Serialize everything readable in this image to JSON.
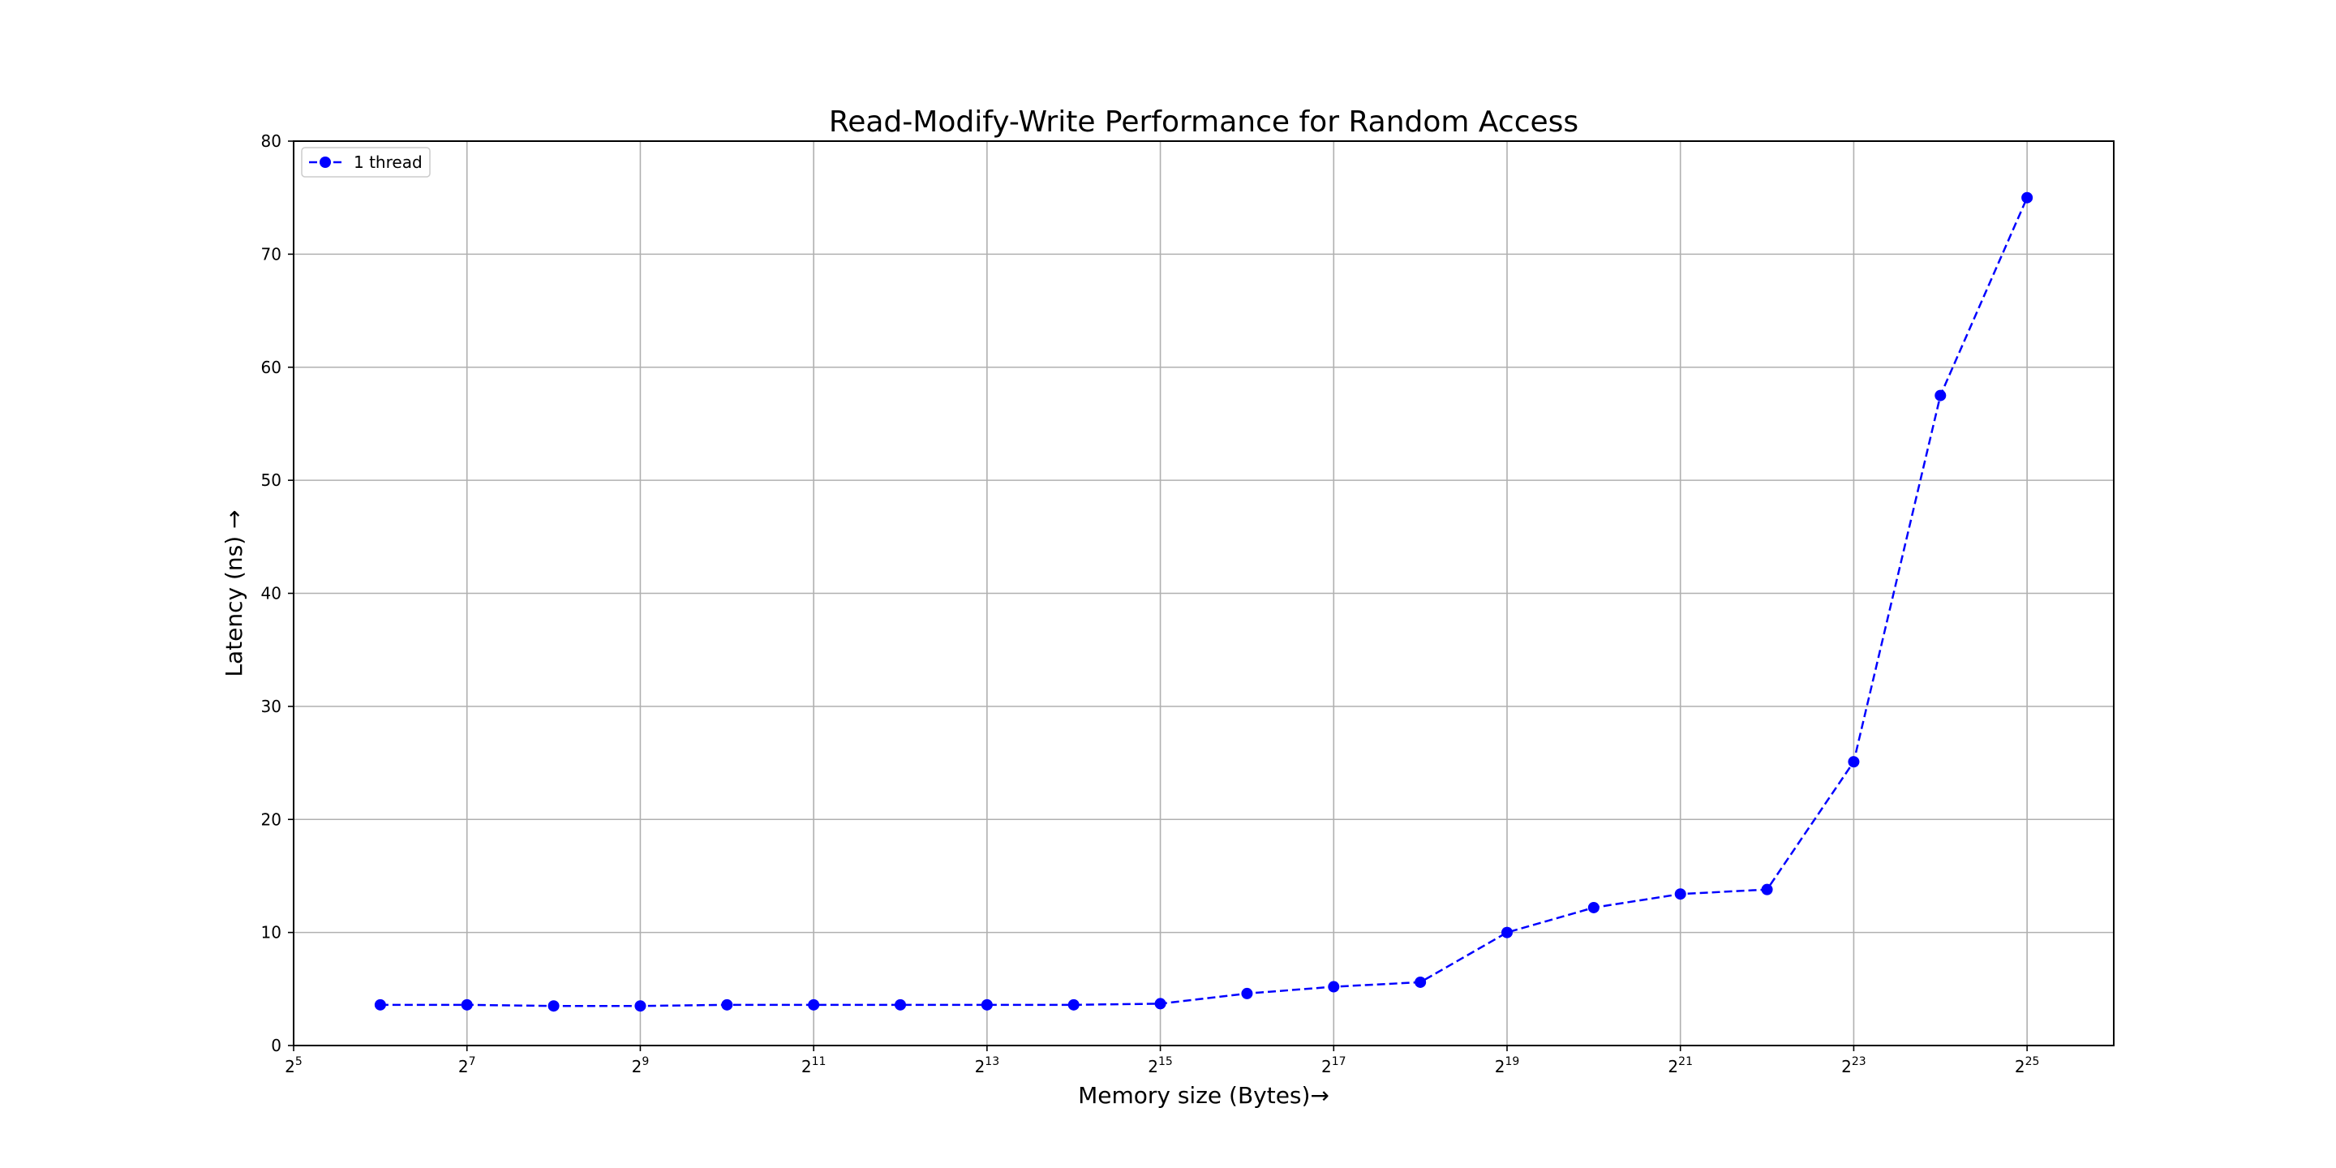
{
  "chart_data": {
    "type": "line",
    "title": "Read-Modify-Write Performance for Random Access",
    "xlabel": "Memory size (Bytes)→",
    "ylabel": "Latency (ns)  →",
    "x_scale": "log2",
    "x_tick_base": "2",
    "x_tick_exponents": [
      "5",
      "7",
      "9",
      "11",
      "13",
      "15",
      "17",
      "19",
      "21",
      "23",
      "25"
    ],
    "y_ticks": [
      "0",
      "10",
      "20",
      "30",
      "40",
      "50",
      "60",
      "70",
      "80"
    ],
    "xlim_log2": [
      5,
      26
    ],
    "ylim": [
      0,
      80
    ],
    "grid": true,
    "legend_position": "upper-left",
    "series": [
      {
        "name": "1 thread",
        "color": "#0000ff",
        "line_style": "dashed",
        "marker": "circle",
        "x": [
          64,
          128,
          256,
          512,
          1024,
          2048,
          4096,
          8192,
          16384,
          32768,
          65536,
          131072,
          262144,
          524288,
          1048576,
          2097152,
          4194304,
          8388608,
          16777216,
          33554432
        ],
        "y": [
          3.6,
          3.6,
          3.5,
          3.5,
          3.6,
          3.6,
          3.6,
          3.6,
          3.6,
          3.7,
          4.6,
          5.2,
          5.6,
          10.0,
          12.2,
          13.4,
          13.8,
          25.1,
          57.5,
          75.0
        ]
      }
    ]
  }
}
